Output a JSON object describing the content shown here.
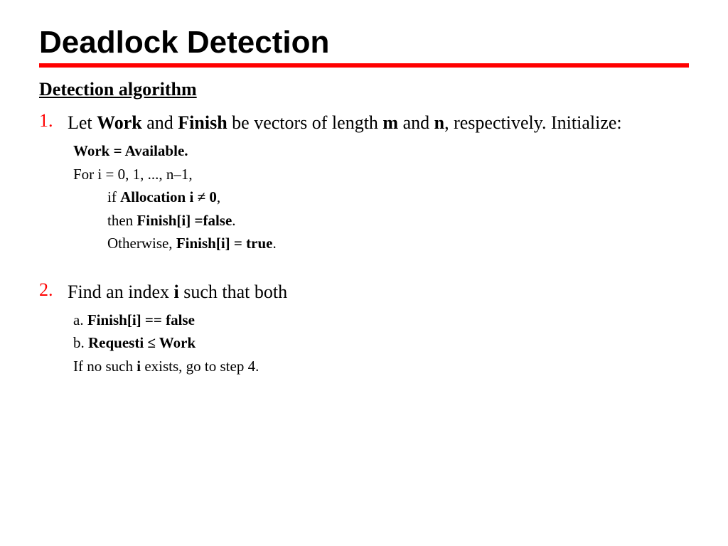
{
  "colors": {
    "accent": "#ff0000",
    "text": "#000000",
    "background": "#ffffff"
  },
  "title": "Deadlock Detection",
  "subtitle": "Detection algorithm",
  "step1": {
    "num": "1.",
    "intro_pre": "Let ",
    "work": "Work",
    "intro_and": " and ",
    "finish": "Finish",
    "intro_mid": " be vectors of length ",
    "m": "m",
    "intro_and2": " and ",
    "n": "n",
    "intro_post": ", respectively. Initialize:",
    "line_a": "Work = Available.",
    "line_b": "For i = 0, 1, ..., n–1,",
    "line_c_pre": "if ",
    "line_c_bold": "Allocation i ≠ 0",
    "line_c_post": ",",
    "line_d_pre": "then ",
    "line_d_bold": "Finish[i] =false",
    "line_d_post": ".",
    "line_e_pre": "Otherwise, ",
    "line_e_bold": "Finish[i] = true",
    "line_e_post": "."
  },
  "step2": {
    "num": "2.",
    "intro_pre": "Find an index ",
    "i": "i",
    "intro_post": " such that both",
    "line_a_pre": "a. ",
    "line_a_bold": "Finish[i] == false",
    "line_b_pre": "b. ",
    "line_b_bold": "Requesti ≤ Work",
    "line_c_pre": "If no such ",
    "line_c_bold": "i",
    "line_c_post": " exists, go to step 4."
  }
}
